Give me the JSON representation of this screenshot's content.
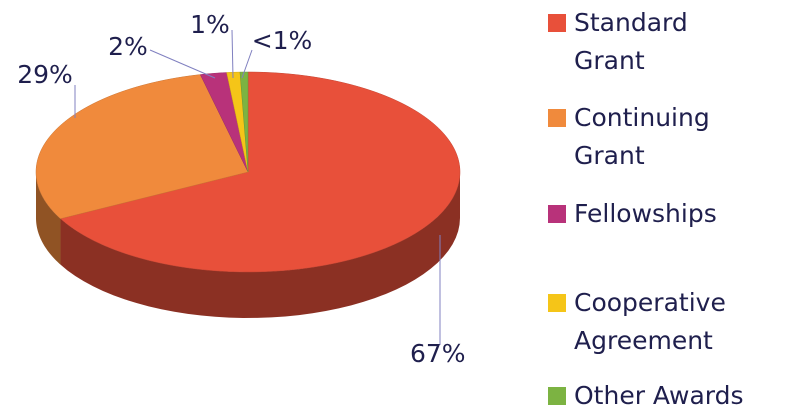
{
  "chart_data": {
    "type": "pie",
    "categories": [
      "Standard Grant",
      "Continuing Grant",
      "Fellowships",
      "Cooperative Agreement",
      "Other Awards"
    ],
    "values": [
      67,
      29,
      2,
      1,
      0.6
    ],
    "value_labels": [
      "67%",
      "29%",
      "2%",
      "1%",
      "<1%"
    ],
    "colors": [
      "#e8503a",
      "#f08a3c",
      "#b8327a",
      "#f5c518",
      "#7cb342"
    ],
    "legend": "right"
  }
}
